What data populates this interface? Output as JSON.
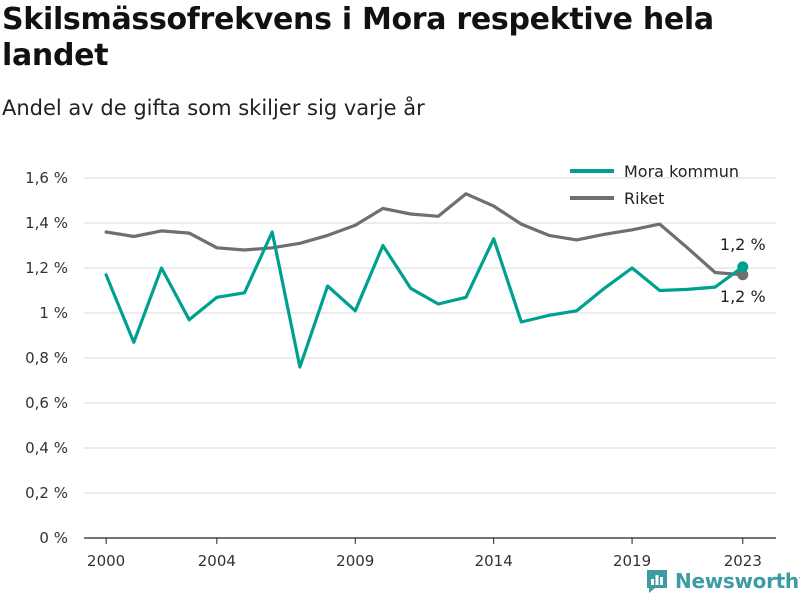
{
  "brand": {
    "name": "Newsworthy",
    "color": "#3d9ca3"
  },
  "chart_data": {
    "type": "line",
    "title": "Skilsmässofrekvens i Mora respektive hela landet",
    "subtitle": "Andel av de gifta som skiljer sig varje år",
    "x": [
      2000,
      2001,
      2002,
      2003,
      2004,
      2005,
      2006,
      2007,
      2008,
      2009,
      2010,
      2011,
      2012,
      2013,
      2014,
      2015,
      2016,
      2017,
      2018,
      2019,
      2020,
      2021,
      2022,
      2023
    ],
    "x_ticks": [
      2000,
      2004,
      2009,
      2014,
      2019,
      2023
    ],
    "xlim": [
      1999.2,
      2024.2
    ],
    "ylim": [
      0,
      1.6
    ],
    "y_ticks": [
      0,
      0.2,
      0.4,
      0.6,
      0.8,
      1.0,
      1.2,
      1.4,
      1.6
    ],
    "y_tick_labels": [
      "0 %",
      "0,2 %",
      "0,4 %",
      "0,6 %",
      "0,8 %",
      "1 %",
      "1,2 %",
      "1,4 %",
      "1,6 %"
    ],
    "grid": true,
    "legend": "top-right",
    "series": [
      {
        "name": "Mora kommun",
        "color": "#00a090",
        "values": [
          1.17,
          0.87,
          1.2,
          0.97,
          1.07,
          1.09,
          1.36,
          0.76,
          1.12,
          1.01,
          1.3,
          1.11,
          1.04,
          1.07,
          1.33,
          0.96,
          0.99,
          1.01,
          1.11,
          1.2,
          1.1,
          1.105,
          1.115,
          1.205
        ],
        "end_label": "1,2 %"
      },
      {
        "name": "Riket",
        "color": "#6e6e73",
        "values": [
          1.36,
          1.34,
          1.365,
          1.355,
          1.29,
          1.28,
          1.29,
          1.31,
          1.345,
          1.39,
          1.465,
          1.44,
          1.43,
          1.53,
          1.475,
          1.395,
          1.345,
          1.325,
          1.35,
          1.37,
          1.395,
          1.29,
          1.18,
          1.17
        ],
        "end_label": "1,2 %"
      }
    ]
  }
}
